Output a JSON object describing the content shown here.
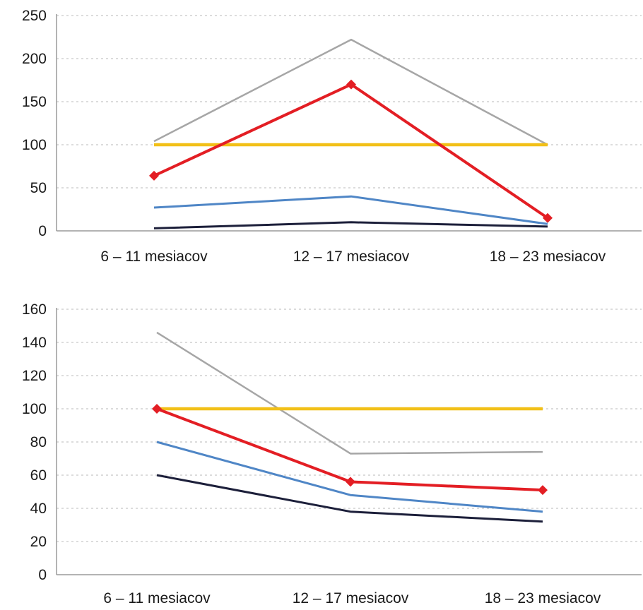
{
  "chart_data": [
    {
      "type": "line",
      "categories": [
        "6 – 11 mesiacov",
        "12 – 17 mesiacov",
        "18 – 23 mesiacov"
      ],
      "ylim": [
        0,
        250
      ],
      "yticks": [
        0,
        50,
        100,
        150,
        200,
        250
      ],
      "grid": true,
      "grid_style": "dashed horizontal",
      "legend": "none",
      "series": [
        {
          "color": "#a6a6a6",
          "values": [
            104,
            222,
            100
          ],
          "markers": false
        },
        {
          "color": "#f2c018",
          "values": [
            100,
            100,
            100
          ],
          "markers": false
        },
        {
          "color": "#e31e24",
          "values": [
            64,
            170,
            15
          ],
          "markers": true
        },
        {
          "color": "#4f86c6",
          "values": [
            27,
            40,
            8
          ],
          "markers": false
        },
        {
          "color": "#1c1f3a",
          "values": [
            3,
            10,
            5
          ],
          "markers": false
        }
      ]
    },
    {
      "type": "line",
      "categories": [
        "6 – 11 mesiacov",
        "12 – 17 mesiacov",
        "18 – 23 mesiacov"
      ],
      "ylim": [
        0,
        160
      ],
      "yticks": [
        0,
        20,
        40,
        60,
        80,
        100,
        120,
        140,
        160
      ],
      "grid": true,
      "grid_style": "dashed horizontal",
      "legend": "none",
      "series": [
        {
          "color": "#a6a6a6",
          "values": [
            146,
            73,
            74
          ],
          "markers": false
        },
        {
          "color": "#f2c018",
          "values": [
            100,
            100,
            100
          ],
          "markers": false
        },
        {
          "color": "#e31e24",
          "values": [
            100,
            56,
            51
          ],
          "markers": true
        },
        {
          "color": "#4f86c6",
          "values": [
            80,
            48,
            38
          ],
          "markers": false
        },
        {
          "color": "#1c1f3a",
          "values": [
            60,
            38,
            32
          ],
          "markers": false
        }
      ]
    }
  ]
}
